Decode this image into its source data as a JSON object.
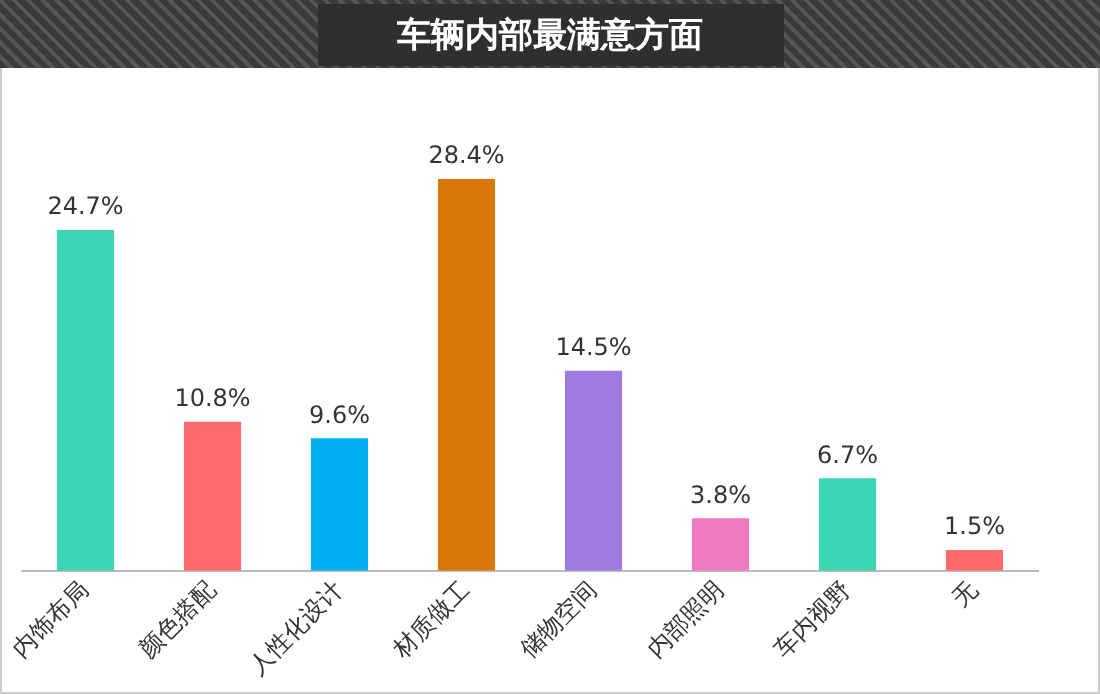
{
  "chart_data": {
    "type": "bar",
    "title": "车辆内部最满意方面",
    "categories": [
      "内饰布局",
      "颜色搭配",
      "人性化设计",
      "材质做工",
      "储物空间",
      "内部照明",
      "车内视野",
      "无"
    ],
    "values": [
      24.7,
      10.8,
      9.6,
      28.4,
      14.5,
      3.8,
      6.7,
      1.5
    ],
    "colors": [
      "#3dd6b5",
      "#ff6b6b",
      "#00b0f0",
      "#d97706",
      "#a07ae0",
      "#f07ac0",
      "#3dd6b5",
      "#ff6b6b"
    ],
    "data_labels": true,
    "value_labels": [
      "24.7%",
      "10.8%",
      "9.6%",
      "28.4%",
      "14.5%",
      "3.8%",
      "6.7%",
      "1.5%"
    ],
    "grid": false,
    "legend": false
  }
}
